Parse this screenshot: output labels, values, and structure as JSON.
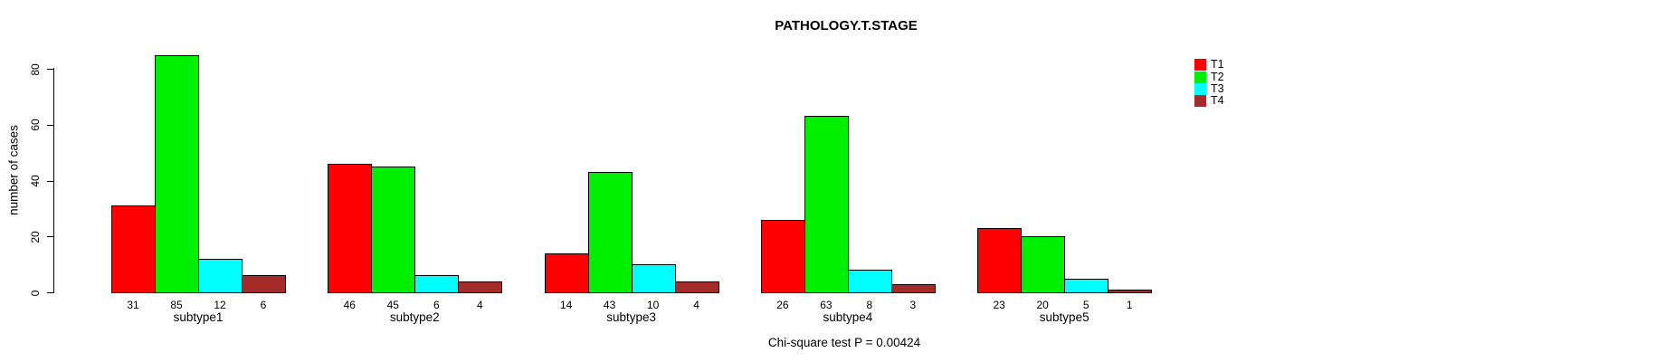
{
  "title": "PATHOLOGY.T.STAGE",
  "annotation": "Chi-square test P = 0.00424",
  "chart_data": {
    "type": "bar",
    "title": "PATHOLOGY.T.STAGE",
    "xlabel": "",
    "ylabel": "number of cases",
    "categories": [
      "subtype1",
      "subtype2",
      "subtype3",
      "subtype4",
      "subtype5"
    ],
    "series": [
      {
        "name": "T1",
        "color": "#ff0000",
        "values": [
          31,
          46,
          14,
          26,
          23
        ]
      },
      {
        "name": "T2",
        "color": "#00ee00",
        "values": [
          85,
          45,
          43,
          63,
          20
        ]
      },
      {
        "name": "T3",
        "color": "#00ffff",
        "values": [
          12,
          6,
          10,
          8,
          5
        ]
      },
      {
        "name": "T4",
        "color": "#a52a2a",
        "values": [
          6,
          4,
          4,
          3,
          1
        ]
      }
    ],
    "ylim": [
      0,
      85
    ],
    "yticks": [
      0,
      20,
      40,
      60,
      80
    ],
    "grid": false,
    "legend_position": "top-right",
    "bar_value_labels_shown": true,
    "footnote": "Chi-square test P = 0.00424"
  },
  "colors": {
    "background": "#ffffff",
    "bar_border": "#000000",
    "text": "#000000"
  }
}
